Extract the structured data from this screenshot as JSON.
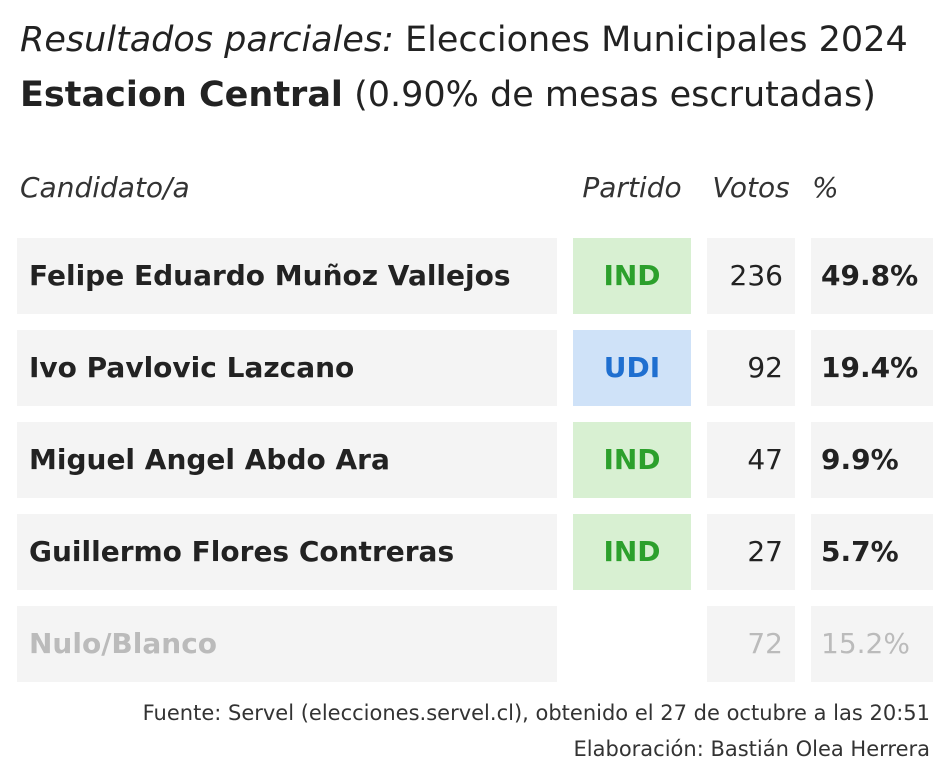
{
  "header": {
    "title_italic": "Resultados parciales:",
    "title_rest": " Elecciones Municipales 2024",
    "subtitle_bold": "Estacion Central",
    "subtitle_rest": " (0.90% de mesas escrutadas)"
  },
  "columns": {
    "candidate": "Candidato/a",
    "party": "Partido",
    "votes": "Votos",
    "percent": "%"
  },
  "rows": [
    {
      "name": "Felipe Eduardo Muñoz Vallejos",
      "party": "IND",
      "votes": "236",
      "percent": "49.8%"
    },
    {
      "name": "Ivo Pavlovic Lazcano",
      "party": "UDI",
      "votes": "92",
      "percent": "19.4%"
    },
    {
      "name": "Miguel Angel Abdo Ara",
      "party": "IND",
      "votes": "47",
      "percent": "9.9%"
    },
    {
      "name": "Guillermo Flores Contreras",
      "party": "IND",
      "votes": "27",
      "percent": "5.7%"
    },
    {
      "name": "Nulo/Blanco",
      "party": "",
      "votes": "72",
      "percent": "15.2%"
    }
  ],
  "footer": {
    "source": "Fuente: Servel (elecciones.servel.cl), obtenido el 27 de octubre a las 20:51",
    "credit": "Elaboración: Bastián Olea Herrera"
  },
  "colors": {
    "ind_bg": "#d8f0d2",
    "ind_text": "#2ca02c",
    "udi_bg": "#cfe2f8",
    "udi_text": "#1f6fd0",
    "cell_bg": "#f4f4f4",
    "muted_text": "#bbbbbb"
  },
  "chart_data": {
    "type": "table",
    "columns": [
      "Candidato/a",
      "Partido",
      "Votos",
      "%"
    ],
    "rows": [
      [
        "Felipe Eduardo Muñoz Vallejos",
        "IND",
        236,
        49.8
      ],
      [
        "Ivo Pavlovic Lazcano",
        "UDI",
        92,
        19.4
      ],
      [
        "Miguel Angel Abdo Ara",
        "IND",
        47,
        9.9
      ],
      [
        "Guillermo Flores Contreras",
        "IND",
        27,
        5.7
      ],
      [
        "Nulo/Blanco",
        "",
        72,
        15.2
      ]
    ]
  }
}
